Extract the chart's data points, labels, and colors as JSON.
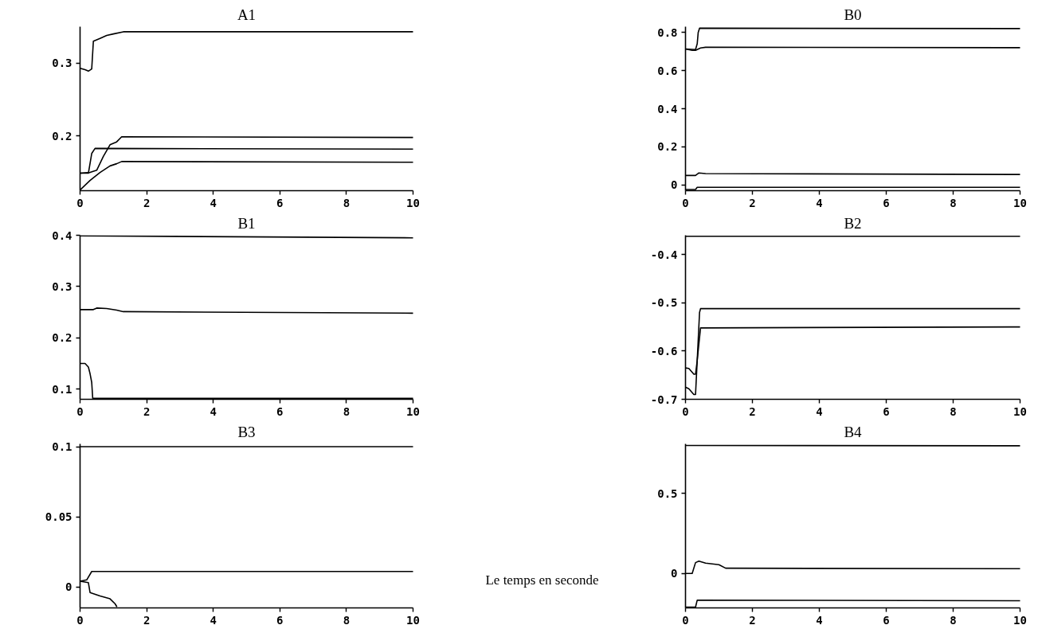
{
  "chart_data": [
    {
      "type": "line",
      "title": "A1",
      "xlim": [
        0,
        10
      ],
      "xticks": [
        0,
        2,
        4,
        6,
        8,
        10
      ],
      "ylim": [
        0.125,
        0.35
      ],
      "yticks": [
        0.2,
        0.3
      ],
      "series": [
        {
          "color": "#000000",
          "x": [
            0,
            0.15,
            0.25,
            0.35,
            0.4,
            0.6,
            0.8,
            1.0,
            1.3,
            10
          ],
          "values": [
            0.293,
            0.291,
            0.289,
            0.292,
            0.33,
            0.334,
            0.338,
            0.34,
            0.343,
            0.343
          ]
        },
        {
          "color": "#000000",
          "x": [
            0,
            0.3,
            0.5,
            0.7,
            0.9,
            1.1,
            1.25,
            10
          ],
          "values": [
            0.149,
            0.15,
            0.153,
            0.172,
            0.188,
            0.192,
            0.199,
            0.198
          ]
        },
        {
          "color": "#000000",
          "x": [
            0,
            0.25,
            0.35,
            0.45,
            10
          ],
          "values": [
            0.149,
            0.149,
            0.176,
            0.183,
            0.182
          ]
        },
        {
          "color": "#000000",
          "x": [
            0,
            0.3,
            0.6,
            0.9,
            1.1,
            1.25,
            10
          ],
          "values": [
            0.126,
            0.139,
            0.15,
            0.159,
            0.162,
            0.165,
            0.164
          ]
        }
      ]
    },
    {
      "type": "line",
      "title": "B0",
      "xlim": [
        0,
        10
      ],
      "xticks": [
        0,
        2,
        4,
        6,
        8,
        10
      ],
      "ylim": [
        -0.03,
        0.83
      ],
      "yticks": [
        0,
        0.2,
        0.4,
        0.6,
        0.8
      ],
      "series": [
        {
          "color": "#000000",
          "x": [
            0,
            0.3,
            0.35,
            0.38,
            0.42,
            10
          ],
          "values": [
            0.713,
            0.71,
            0.74,
            0.8,
            0.822,
            0.82
          ]
        },
        {
          "color": "#000000",
          "x": [
            0,
            0.2,
            0.3,
            0.45,
            0.6,
            10
          ],
          "values": [
            0.713,
            0.706,
            0.706,
            0.718,
            0.722,
            0.72
          ]
        },
        {
          "color": "#000000",
          "x": [
            0,
            0.3,
            0.4,
            0.6,
            10
          ],
          "values": [
            0.05,
            0.05,
            0.063,
            0.06,
            0.055
          ]
        },
        {
          "color": "#000000",
          "x": [
            0,
            0.3,
            0.35,
            10
          ],
          "values": [
            -0.024,
            -0.024,
            -0.012,
            -0.012
          ]
        }
      ]
    },
    {
      "type": "line",
      "title": "B1",
      "xlim": [
        0,
        10
      ],
      "xticks": [
        0,
        2,
        4,
        6,
        8,
        10
      ],
      "ylim": [
        0.08,
        0.4
      ],
      "yticks": [
        0.1,
        0.2,
        0.3,
        0.4
      ],
      "series": [
        {
          "color": "#000000",
          "x": [
            0,
            10
          ],
          "values": [
            0.399,
            0.395
          ]
        },
        {
          "color": "#000000",
          "x": [
            0,
            0.4,
            0.5,
            0.8,
            1.1,
            1.3,
            10
          ],
          "values": [
            0.255,
            0.255,
            0.258,
            0.257,
            0.254,
            0.251,
            0.248
          ]
        },
        {
          "color": "#000000",
          "x": [
            0,
            0.15,
            0.25,
            0.3,
            0.35,
            0.38,
            10
          ],
          "values": [
            0.15,
            0.15,
            0.143,
            0.13,
            0.113,
            0.082,
            0.082
          ]
        }
      ]
    },
    {
      "type": "line",
      "title": "B2",
      "xlim": [
        0,
        10
      ],
      "xticks": [
        0,
        2,
        4,
        6,
        8,
        10
      ],
      "ylim": [
        -0.7,
        -0.36
      ],
      "yticks": [
        -0.7,
        -0.6,
        -0.5,
        -0.4
      ],
      "series": [
        {
          "color": "#000000",
          "x": [
            0,
            10
          ],
          "values": [
            -0.362,
            -0.362
          ]
        },
        {
          "color": "#000000",
          "x": [
            0,
            0.1,
            0.25,
            0.3,
            0.35,
            0.42,
            0.45,
            10
          ],
          "values": [
            -0.675,
            -0.678,
            -0.69,
            -0.69,
            -0.62,
            -0.52,
            -0.512,
            -0.512
          ]
        },
        {
          "color": "#000000",
          "x": [
            0,
            0.1,
            0.25,
            0.3,
            0.35,
            0.4,
            0.45,
            10
          ],
          "values": [
            -0.635,
            -0.636,
            -0.648,
            -0.648,
            -0.62,
            -0.585,
            -0.552,
            -0.55
          ]
        }
      ]
    },
    {
      "type": "line",
      "title": "B3",
      "xlim": [
        0,
        10
      ],
      "xticks": [
        0,
        2,
        4,
        6,
        8,
        10
      ],
      "ylim": [
        -0.015,
        0.102
      ],
      "yticks": [
        0,
        0.05,
        0.1
      ],
      "series": [
        {
          "color": "#000000",
          "x": [
            0,
            10
          ],
          "values": [
            0.1,
            0.1
          ]
        },
        {
          "color": "#000000",
          "x": [
            0,
            0.2,
            0.35,
            10
          ],
          "values": [
            0.004,
            0.005,
            0.011,
            0.011
          ]
        },
        {
          "color": "#000000",
          "x": [
            0,
            0.25,
            0.3,
            0.6,
            0.9,
            1.05,
            1.1
          ],
          "values": [
            0.004,
            0.003,
            -0.004,
            -0.0065,
            -0.0085,
            -0.012,
            -0.014
          ]
        }
      ]
    },
    {
      "type": "line",
      "title": "B4",
      "xlim": [
        0,
        10
      ],
      "xticks": [
        0,
        2,
        4,
        6,
        8,
        10
      ],
      "ylim": [
        -0.215,
        0.81
      ],
      "yticks": [
        0,
        0.5
      ],
      "annotations": [
        "Le temps en seconde"
      ],
      "series": [
        {
          "color": "#000000",
          "x": [
            0,
            10
          ],
          "values": [
            0.8,
            0.798
          ]
        },
        {
          "color": "#000000",
          "x": [
            0,
            0.2,
            0.3,
            0.4,
            0.6,
            1.0,
            1.2,
            10
          ],
          "values": [
            0,
            0,
            0.068,
            0.077,
            0.065,
            0.055,
            0.033,
            0.03
          ]
        },
        {
          "color": "#000000",
          "x": [
            0,
            0.3,
            0.35,
            10
          ],
          "values": [
            -0.21,
            -0.21,
            -0.167,
            -0.17
          ]
        }
      ]
    }
  ]
}
